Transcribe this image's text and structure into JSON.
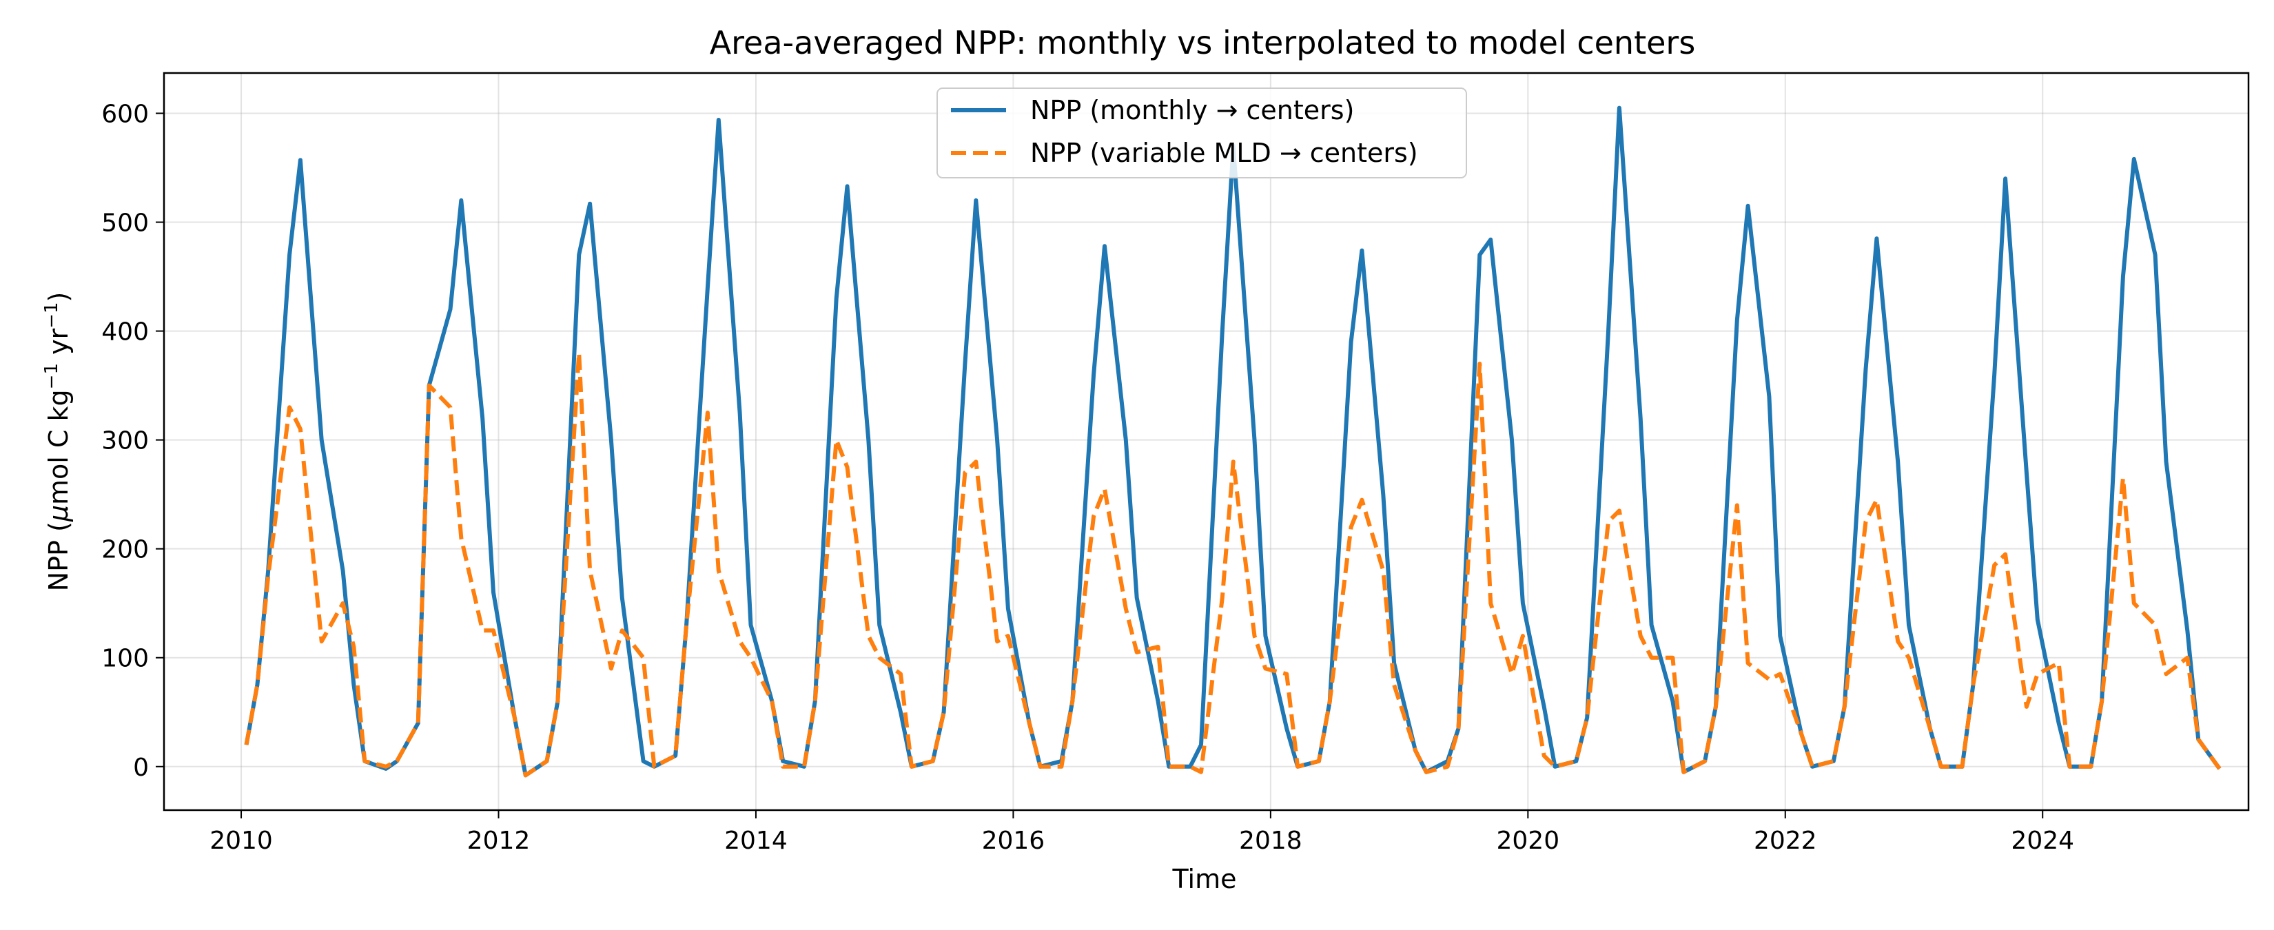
{
  "chart_data": {
    "type": "line",
    "title": "Area-averaged NPP: monthly vs interpolated to model centers",
    "xlabel": "Time",
    "ylabel_parts": [
      "NPP (",
      "μ",
      "mol C kg",
      "−1",
      " yr",
      "−1",
      ")"
    ],
    "xlim": [
      2009.4,
      2025.6
    ],
    "ylim": [
      -40,
      637
    ],
    "xticks": [
      2010,
      2012,
      2014,
      2016,
      2018,
      2020,
      2022,
      2024
    ],
    "yticks": [
      0,
      100,
      200,
      300,
      400,
      500,
      600
    ],
    "grid": true,
    "legend_position": "top-center",
    "series": [
      {
        "name": "NPP (monthly → centers)",
        "color": "#1f77b4",
        "style": "solid",
        "points": [
          [
            2010.04,
            20
          ],
          [
            2010.125,
            75
          ],
          [
            2010.21,
            180
          ],
          [
            2010.375,
            470
          ],
          [
            2010.46,
            557
          ],
          [
            2010.625,
            300
          ],
          [
            2010.79,
            180
          ],
          [
            2010.875,
            75
          ],
          [
            2010.96,
            5
          ],
          [
            2011.125,
            -2
          ],
          [
            2011.21,
            5
          ],
          [
            2011.375,
            40
          ],
          [
            2011.46,
            350
          ],
          [
            2011.625,
            420
          ],
          [
            2011.71,
            520
          ],
          [
            2011.875,
            320
          ],
          [
            2011.96,
            160
          ],
          [
            2012.125,
            45
          ],
          [
            2012.21,
            -8
          ],
          [
            2012.375,
            5
          ],
          [
            2012.46,
            60
          ],
          [
            2012.625,
            470
          ],
          [
            2012.71,
            517
          ],
          [
            2012.875,
            300
          ],
          [
            2012.96,
            155
          ],
          [
            2013.125,
            5
          ],
          [
            2013.21,
            0
          ],
          [
            2013.375,
            10
          ],
          [
            2013.46,
            130
          ],
          [
            2013.625,
            440
          ],
          [
            2013.71,
            594
          ],
          [
            2013.875,
            325
          ],
          [
            2013.96,
            130
          ],
          [
            2014.125,
            60
          ],
          [
            2014.21,
            5
          ],
          [
            2014.375,
            0
          ],
          [
            2014.46,
            60
          ],
          [
            2014.625,
            430
          ],
          [
            2014.71,
            533
          ],
          [
            2014.875,
            300
          ],
          [
            2014.96,
            130
          ],
          [
            2015.125,
            50
          ],
          [
            2015.21,
            0
          ],
          [
            2015.375,
            5
          ],
          [
            2015.46,
            50
          ],
          [
            2015.625,
            370
          ],
          [
            2015.71,
            520
          ],
          [
            2015.875,
            300
          ],
          [
            2015.96,
            145
          ],
          [
            2016.125,
            40
          ],
          [
            2016.21,
            0
          ],
          [
            2016.375,
            5
          ],
          [
            2016.46,
            60
          ],
          [
            2016.625,
            360
          ],
          [
            2016.71,
            478
          ],
          [
            2016.875,
            300
          ],
          [
            2016.96,
            155
          ],
          [
            2017.125,
            60
          ],
          [
            2017.21,
            0
          ],
          [
            2017.375,
            0
          ],
          [
            2017.46,
            20
          ],
          [
            2017.625,
            400
          ],
          [
            2017.71,
            570
          ],
          [
            2017.875,
            300
          ],
          [
            2017.96,
            120
          ],
          [
            2018.125,
            35
          ],
          [
            2018.21,
            0
          ],
          [
            2018.375,
            5
          ],
          [
            2018.46,
            60
          ],
          [
            2018.625,
            390
          ],
          [
            2018.71,
            474
          ],
          [
            2018.875,
            250
          ],
          [
            2018.96,
            95
          ],
          [
            2019.125,
            15
          ],
          [
            2019.21,
            -5
          ],
          [
            2019.375,
            5
          ],
          [
            2019.46,
            35
          ],
          [
            2019.625,
            470
          ],
          [
            2019.71,
            484
          ],
          [
            2019.875,
            300
          ],
          [
            2019.96,
            150
          ],
          [
            2020.125,
            55
          ],
          [
            2020.21,
            0
          ],
          [
            2020.375,
            5
          ],
          [
            2020.46,
            45
          ],
          [
            2020.625,
            400
          ],
          [
            2020.71,
            605
          ],
          [
            2020.875,
            320
          ],
          [
            2020.96,
            130
          ],
          [
            2021.125,
            60
          ],
          [
            2021.21,
            -5
          ],
          [
            2021.375,
            5
          ],
          [
            2021.46,
            55
          ],
          [
            2021.625,
            410
          ],
          [
            2021.71,
            515
          ],
          [
            2021.875,
            340
          ],
          [
            2021.96,
            120
          ],
          [
            2022.125,
            30
          ],
          [
            2022.21,
            0
          ],
          [
            2022.375,
            5
          ],
          [
            2022.46,
            55
          ],
          [
            2022.625,
            365
          ],
          [
            2022.71,
            485
          ],
          [
            2022.875,
            280
          ],
          [
            2022.96,
            130
          ],
          [
            2023.125,
            35
          ],
          [
            2023.21,
            0
          ],
          [
            2023.375,
            0
          ],
          [
            2023.46,
            75
          ],
          [
            2023.625,
            360
          ],
          [
            2023.71,
            540
          ],
          [
            2023.875,
            270
          ],
          [
            2023.96,
            135
          ],
          [
            2024.125,
            40
          ],
          [
            2024.21,
            0
          ],
          [
            2024.375,
            0
          ],
          [
            2024.46,
            60
          ],
          [
            2024.625,
            450
          ],
          [
            2024.71,
            558
          ],
          [
            2024.875,
            470
          ],
          [
            2024.96,
            280
          ],
          [
            2025.125,
            125
          ],
          [
            2025.21,
            25
          ],
          [
            2025.375,
            -2
          ]
        ]
      },
      {
        "name": "NPP (variable MLD → centers)",
        "color": "#ff7f0e",
        "style": "dashed",
        "points": [
          [
            2010.04,
            20
          ],
          [
            2010.125,
            75
          ],
          [
            2010.21,
            175
          ],
          [
            2010.375,
            330
          ],
          [
            2010.46,
            310
          ],
          [
            2010.625,
            115
          ],
          [
            2010.79,
            150
          ],
          [
            2010.875,
            110
          ],
          [
            2010.96,
            5
          ],
          [
            2011.125,
            0
          ],
          [
            2011.21,
            5
          ],
          [
            2011.375,
            40
          ],
          [
            2011.46,
            350
          ],
          [
            2011.625,
            330
          ],
          [
            2011.71,
            210
          ],
          [
            2011.875,
            125
          ],
          [
            2011.96,
            125
          ],
          [
            2012.125,
            45
          ],
          [
            2012.21,
            -8
          ],
          [
            2012.375,
            5
          ],
          [
            2012.46,
            60
          ],
          [
            2012.625,
            380
          ],
          [
            2012.71,
            180
          ],
          [
            2012.875,
            90
          ],
          [
            2012.96,
            125
          ],
          [
            2013.125,
            100
          ],
          [
            2013.21,
            0
          ],
          [
            2013.375,
            10
          ],
          [
            2013.46,
            130
          ],
          [
            2013.625,
            325
          ],
          [
            2013.71,
            180
          ],
          [
            2013.875,
            115
          ],
          [
            2013.96,
            100
          ],
          [
            2014.125,
            60
          ],
          [
            2014.21,
            0
          ],
          [
            2014.375,
            0
          ],
          [
            2014.46,
            60
          ],
          [
            2014.625,
            300
          ],
          [
            2014.71,
            275
          ],
          [
            2014.875,
            120
          ],
          [
            2014.96,
            100
          ],
          [
            2015.125,
            85
          ],
          [
            2015.21,
            0
          ],
          [
            2015.375,
            5
          ],
          [
            2015.46,
            50
          ],
          [
            2015.625,
            270
          ],
          [
            2015.71,
            280
          ],
          [
            2015.875,
            115
          ],
          [
            2015.96,
            120
          ],
          [
            2016.125,
            40
          ],
          [
            2016.21,
            0
          ],
          [
            2016.375,
            0
          ],
          [
            2016.46,
            60
          ],
          [
            2016.625,
            230
          ],
          [
            2016.71,
            255
          ],
          [
            2016.875,
            145
          ],
          [
            2016.96,
            105
          ],
          [
            2017.125,
            110
          ],
          [
            2017.21,
            0
          ],
          [
            2017.375,
            0
          ],
          [
            2017.46,
            -5
          ],
          [
            2017.625,
            155
          ],
          [
            2017.71,
            280
          ],
          [
            2017.875,
            120
          ],
          [
            2017.96,
            90
          ],
          [
            2018.125,
            85
          ],
          [
            2018.21,
            0
          ],
          [
            2018.375,
            5
          ],
          [
            2018.46,
            60
          ],
          [
            2018.625,
            220
          ],
          [
            2018.71,
            245
          ],
          [
            2018.875,
            180
          ],
          [
            2018.96,
            75
          ],
          [
            2019.125,
            15
          ],
          [
            2019.21,
            -5
          ],
          [
            2019.375,
            0
          ],
          [
            2019.46,
            35
          ],
          [
            2019.625,
            370
          ],
          [
            2019.71,
            150
          ],
          [
            2019.875,
            85
          ],
          [
            2019.96,
            120
          ],
          [
            2020.125,
            10
          ],
          [
            2020.21,
            0
          ],
          [
            2020.375,
            5
          ],
          [
            2020.46,
            45
          ],
          [
            2020.625,
            225
          ],
          [
            2020.71,
            235
          ],
          [
            2020.875,
            120
          ],
          [
            2020.96,
            100
          ],
          [
            2021.125,
            100
          ],
          [
            2021.21,
            -5
          ],
          [
            2021.375,
            5
          ],
          [
            2021.46,
            55
          ],
          [
            2021.625,
            240
          ],
          [
            2021.71,
            95
          ],
          [
            2021.875,
            80
          ],
          [
            2021.96,
            85
          ],
          [
            2022.125,
            30
          ],
          [
            2022.21,
            0
          ],
          [
            2022.375,
            5
          ],
          [
            2022.46,
            55
          ],
          [
            2022.625,
            225
          ],
          [
            2022.71,
            245
          ],
          [
            2022.875,
            115
          ],
          [
            2022.96,
            100
          ],
          [
            2023.125,
            35
          ],
          [
            2023.21,
            0
          ],
          [
            2023.375,
            0
          ],
          [
            2023.46,
            75
          ],
          [
            2023.625,
            185
          ],
          [
            2023.71,
            195
          ],
          [
            2023.875,
            55
          ],
          [
            2023.96,
            85
          ],
          [
            2024.125,
            95
          ],
          [
            2024.21,
            0
          ],
          [
            2024.375,
            0
          ],
          [
            2024.46,
            60
          ],
          [
            2024.625,
            265
          ],
          [
            2024.71,
            150
          ],
          [
            2024.875,
            130
          ],
          [
            2024.96,
            85
          ],
          [
            2025.125,
            100
          ],
          [
            2025.21,
            25
          ],
          [
            2025.375,
            -2
          ]
        ]
      }
    ]
  }
}
